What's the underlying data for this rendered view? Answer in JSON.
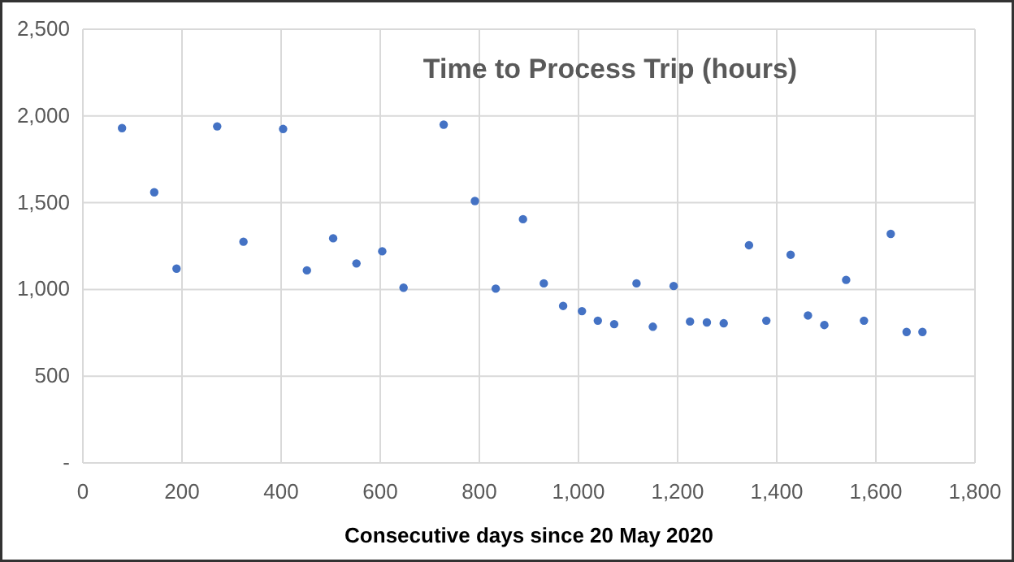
{
  "chart_data": {
    "type": "scatter",
    "title": "Time to Process Trip (hours)",
    "xlabel": "Consecutive days since 20 May 2020",
    "x": [
      79,
      144,
      189,
      271,
      324,
      404,
      452,
      505,
      552,
      604,
      647,
      728,
      791,
      833,
      888,
      930,
      969,
      1007,
      1039,
      1072,
      1117,
      1150,
      1192,
      1225,
      1259,
      1293,
      1344,
      1379,
      1428,
      1463,
      1496,
      1540,
      1576,
      1630,
      1662,
      1694
    ],
    "values": [
      1930,
      1560,
      1120,
      1940,
      1275,
      1925,
      1110,
      1295,
      1150,
      1220,
      1010,
      1950,
      1510,
      1005,
      1405,
      1035,
      905,
      875,
      820,
      800,
      1035,
      785,
      1020,
      815,
      810,
      805,
      1255,
      820,
      1200,
      850,
      795,
      1055,
      820,
      1320,
      755,
      755
    ],
    "color": "#4472c4",
    "marker": "circle",
    "xlim": [
      0,
      1800
    ],
    "xticks": [
      {
        "value": 0,
        "label": "0"
      },
      {
        "value": 200,
        "label": "200"
      },
      {
        "value": 400,
        "label": "400"
      },
      {
        "value": 600,
        "label": "600"
      },
      {
        "value": 800,
        "label": "800"
      },
      {
        "value": 1000,
        "label": "1,000"
      },
      {
        "value": 1200,
        "label": "1,200"
      },
      {
        "value": 1400,
        "label": "1,400"
      },
      {
        "value": 1600,
        "label": "1,600"
      },
      {
        "value": 1800,
        "label": "1,800"
      }
    ],
    "ylim": [
      0,
      2500
    ],
    "yticks": [
      {
        "value": 0,
        "label": "-"
      },
      {
        "value": 500,
        "label": "500"
      },
      {
        "value": 1000,
        "label": "1,000"
      },
      {
        "value": 1500,
        "label": "1,500"
      },
      {
        "value": 2000,
        "label": "2,000"
      },
      {
        "value": 2500,
        "label": "2,500"
      }
    ],
    "grid": true
  }
}
